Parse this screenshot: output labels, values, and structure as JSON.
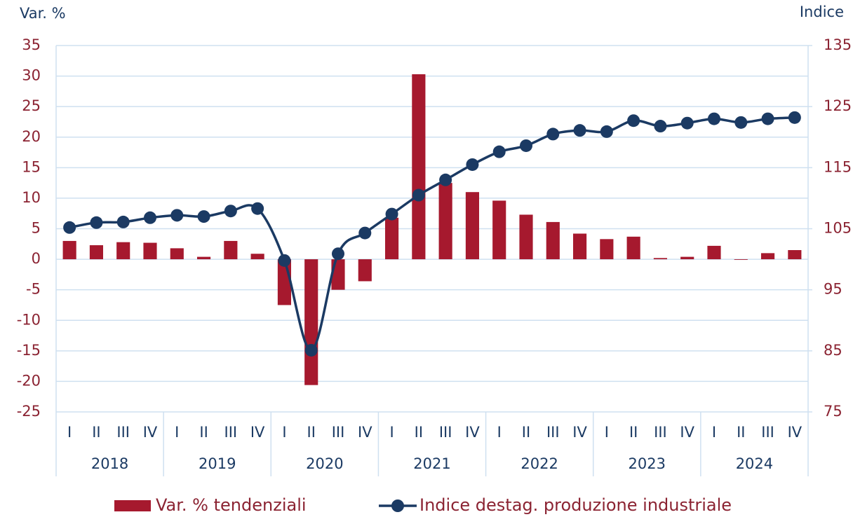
{
  "chart_data": {
    "type": "bar+line",
    "y_label": "Var. %",
    "y2_label": "Indice",
    "categories": [
      "I",
      "II",
      "III",
      "IV",
      "I",
      "II",
      "III",
      "IV",
      "I",
      "II",
      "III",
      "IV",
      "I",
      "II",
      "III",
      "IV",
      "I",
      "II",
      "III",
      "IV",
      "I",
      "II",
      "III",
      "IV",
      "I",
      "II",
      "III",
      "IV"
    ],
    "years": [
      "2018",
      "2019",
      "2020",
      "2021",
      "2022",
      "2023",
      "2024"
    ],
    "series": [
      {
        "name": "Var. % tendenziali",
        "type": "bar",
        "color": "#a6192e",
        "values": [
          3.0,
          2.3,
          2.8,
          2.7,
          1.8,
          0.4,
          3.0,
          0.9,
          -7.5,
          -20.6,
          -5.0,
          -3.6,
          6.8,
          30.3,
          12.5,
          11.0,
          9.6,
          7.3,
          6.1,
          4.2,
          3.3,
          3.7,
          0.2,
          0.4,
          2.2,
          -0.1,
          1.0,
          1.5
        ]
      },
      {
        "name": "Indice destag. produzione industriale",
        "type": "line",
        "axis": "y2",
        "color": "#1b3a63",
        "values": [
          105.2,
          106.0,
          106.1,
          106.8,
          107.2,
          107.0,
          107.9,
          108.3,
          99.8,
          85.1,
          100.9,
          104.3,
          107.4,
          110.5,
          113.0,
          115.5,
          117.6,
          118.6,
          120.5,
          121.1,
          120.9,
          122.7,
          121.8,
          122.3,
          123.0,
          122.4,
          123.0,
          123.2
        ]
      }
    ],
    "ylim": [
      -25,
      35
    ],
    "yticks": [
      -25,
      -20,
      -15,
      -10,
      -5,
      0,
      5,
      10,
      15,
      20,
      25,
      30,
      35
    ],
    "y2lim": [
      75,
      135
    ],
    "y2ticks": [
      75,
      85,
      95,
      105,
      115,
      125,
      135
    ],
    "grid": true,
    "legend": "bottom"
  }
}
